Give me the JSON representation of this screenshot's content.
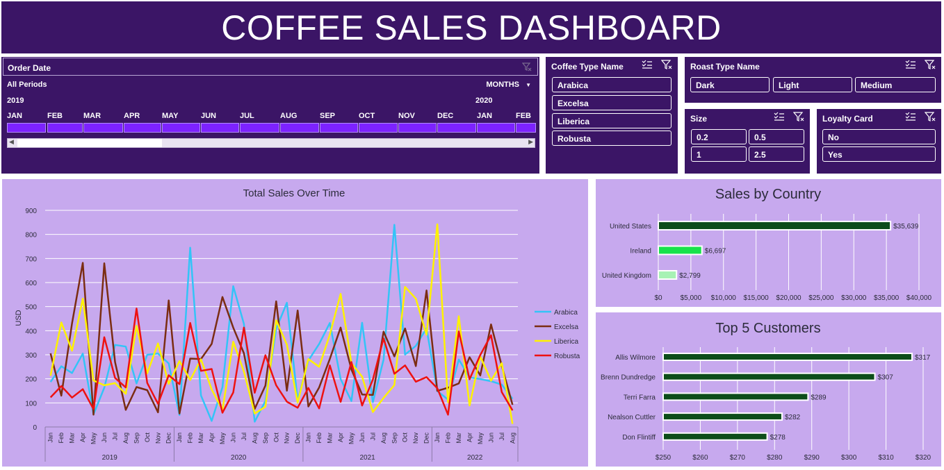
{
  "dashboard": {
    "title": "COFFEE SALES DASHBOARD"
  },
  "timeline": {
    "header": "Order Date",
    "periods_label": "All Periods",
    "granularity": "MONTHS",
    "year_2019": "2019",
    "year_2020": "2020",
    "months": [
      "JAN",
      "FEB",
      "MAR",
      "APR",
      "MAY",
      "JUN",
      "JUL",
      "AUG",
      "SEP",
      "OCT",
      "NOV",
      "DEC",
      "JAN",
      "FEB"
    ]
  },
  "coffee_type_slicer": {
    "header": "Coffee Type Name",
    "items": [
      "Arabica",
      "Excelsa",
      "Liberica",
      "Robusta"
    ]
  },
  "roast_type_slicer": {
    "header": "Roast Type Name",
    "items": [
      "Dark",
      "Light",
      "Medium"
    ]
  },
  "size_slicer": {
    "header": "Size",
    "items": [
      "0.2",
      "0.5",
      "1",
      "2.5"
    ]
  },
  "loyalty_slicer": {
    "header": "Loyalty Card",
    "items": [
      "No",
      "Yes"
    ]
  },
  "colors": {
    "arabica": "#33c4f7",
    "excelsa": "#7b2d12",
    "liberica": "#fff200",
    "robusta": "#ee1111",
    "dark_panel": "#3b1566",
    "light_panel": "#c7a9ee",
    "bar_dark": "#0d4d1a",
    "bar_mid": "#17e24b",
    "bar_light": "#a7f2b4"
  },
  "chart_data": [
    {
      "type": "line",
      "title": "Total Sales Over Time",
      "ylabel": "USD",
      "ylim": [
        0,
        900
      ],
      "yticks": [
        "0",
        "100",
        "200",
        "300",
        "400",
        "500",
        "600",
        "700",
        "800",
        "900"
      ],
      "month_labels": [
        "Jan",
        "Feb",
        "Mar",
        "Apr",
        "May",
        "Jun",
        "Jul",
        "Aug",
        "Sep",
        "Oct",
        "Nov",
        "Dec"
      ],
      "years": [
        "2019",
        "2020",
        "2021",
        "2022"
      ],
      "last_month_label_count": 8,
      "series": [
        {
          "name": "Arabica",
          "values": [
            187,
            252,
            224,
            305,
            52,
            163,
            341,
            334,
            181,
            300,
            305,
            264,
            50,
            745,
            131,
            25,
            165,
            585,
            428,
            22,
            108,
            408,
            516,
            111,
            276,
            345,
            432,
            199,
            108,
            433,
            103,
            280,
            840,
            301,
            337,
            410,
            149,
            114,
            280,
            206,
            199,
            190,
            176,
            117
          ]
        },
        {
          "name": "Excelsa",
          "values": [
            306,
            130,
            430,
            682,
            51,
            680,
            270,
            71,
            166,
            153,
            61,
            526,
            56,
            284,
            282,
            345,
            540,
            413,
            306,
            75,
            172,
            522,
            151,
            484,
            85,
            164,
            283,
            413,
            239,
            135,
            133,
            396,
            293,
            409,
            253,
            567,
            150,
            163,
            181,
            290,
            214,
            426,
            254,
            92
          ]
        },
        {
          "name": "Liberica",
          "values": [
            213,
            434,
            317,
            533,
            193,
            173,
            182,
            138,
            420,
            223,
            347,
            179,
            274,
            195,
            281,
            156,
            70,
            354,
            230,
            56,
            84,
            443,
            342,
            101,
            282,
            250,
            384,
            553,
            265,
            209,
            62,
            121,
            174,
            582,
            533,
            383,
            842,
            102,
            460,
            89,
            293,
            192,
            265,
            13
          ]
        },
        {
          "name": "Robusta",
          "values": [
            123,
            170,
            122,
            157,
            74,
            373,
            204,
            164,
            492,
            183,
            96,
            215,
            178,
            432,
            233,
            241,
            59,
            143,
            413,
            142,
            298,
            173,
            105,
            80,
            162,
            77,
            256,
            104,
            270,
            89,
            197,
            368,
            221,
            256,
            188,
            207,
            161,
            51,
            397,
            198,
            299,
            381,
            145,
            69
          ]
        }
      ]
    },
    {
      "type": "bar",
      "orientation": "horizontal",
      "title": "Sales by Country",
      "categories": [
        "United States",
        "Ireland",
        "United Kingdom"
      ],
      "values": [
        35639,
        6697,
        2799
      ],
      "data_labels": [
        "$35,639",
        "$6,697",
        "$2,799"
      ],
      "xlim": [
        0,
        40000
      ],
      "xticks": [
        "$0",
        "$5,000",
        "$10,000",
        "$15,000",
        "$20,000",
        "$25,000",
        "$30,000",
        "$35,000",
        "$40,000"
      ]
    },
    {
      "type": "bar",
      "orientation": "horizontal",
      "title": "Top 5 Customers",
      "categories": [
        "Allis Wilmore",
        "Brenn Dundredge",
        "Terri Farra",
        "Nealson Cuttler",
        "Don Flintiff"
      ],
      "values": [
        317,
        307,
        289,
        282,
        278
      ],
      "data_labels": [
        "$317",
        "$307",
        "$289",
        "$282",
        "$278"
      ],
      "xlim": [
        250,
        320
      ],
      "xticks": [
        "$250",
        "$260",
        "$270",
        "$280",
        "$290",
        "$300",
        "$310",
        "$320"
      ]
    }
  ]
}
